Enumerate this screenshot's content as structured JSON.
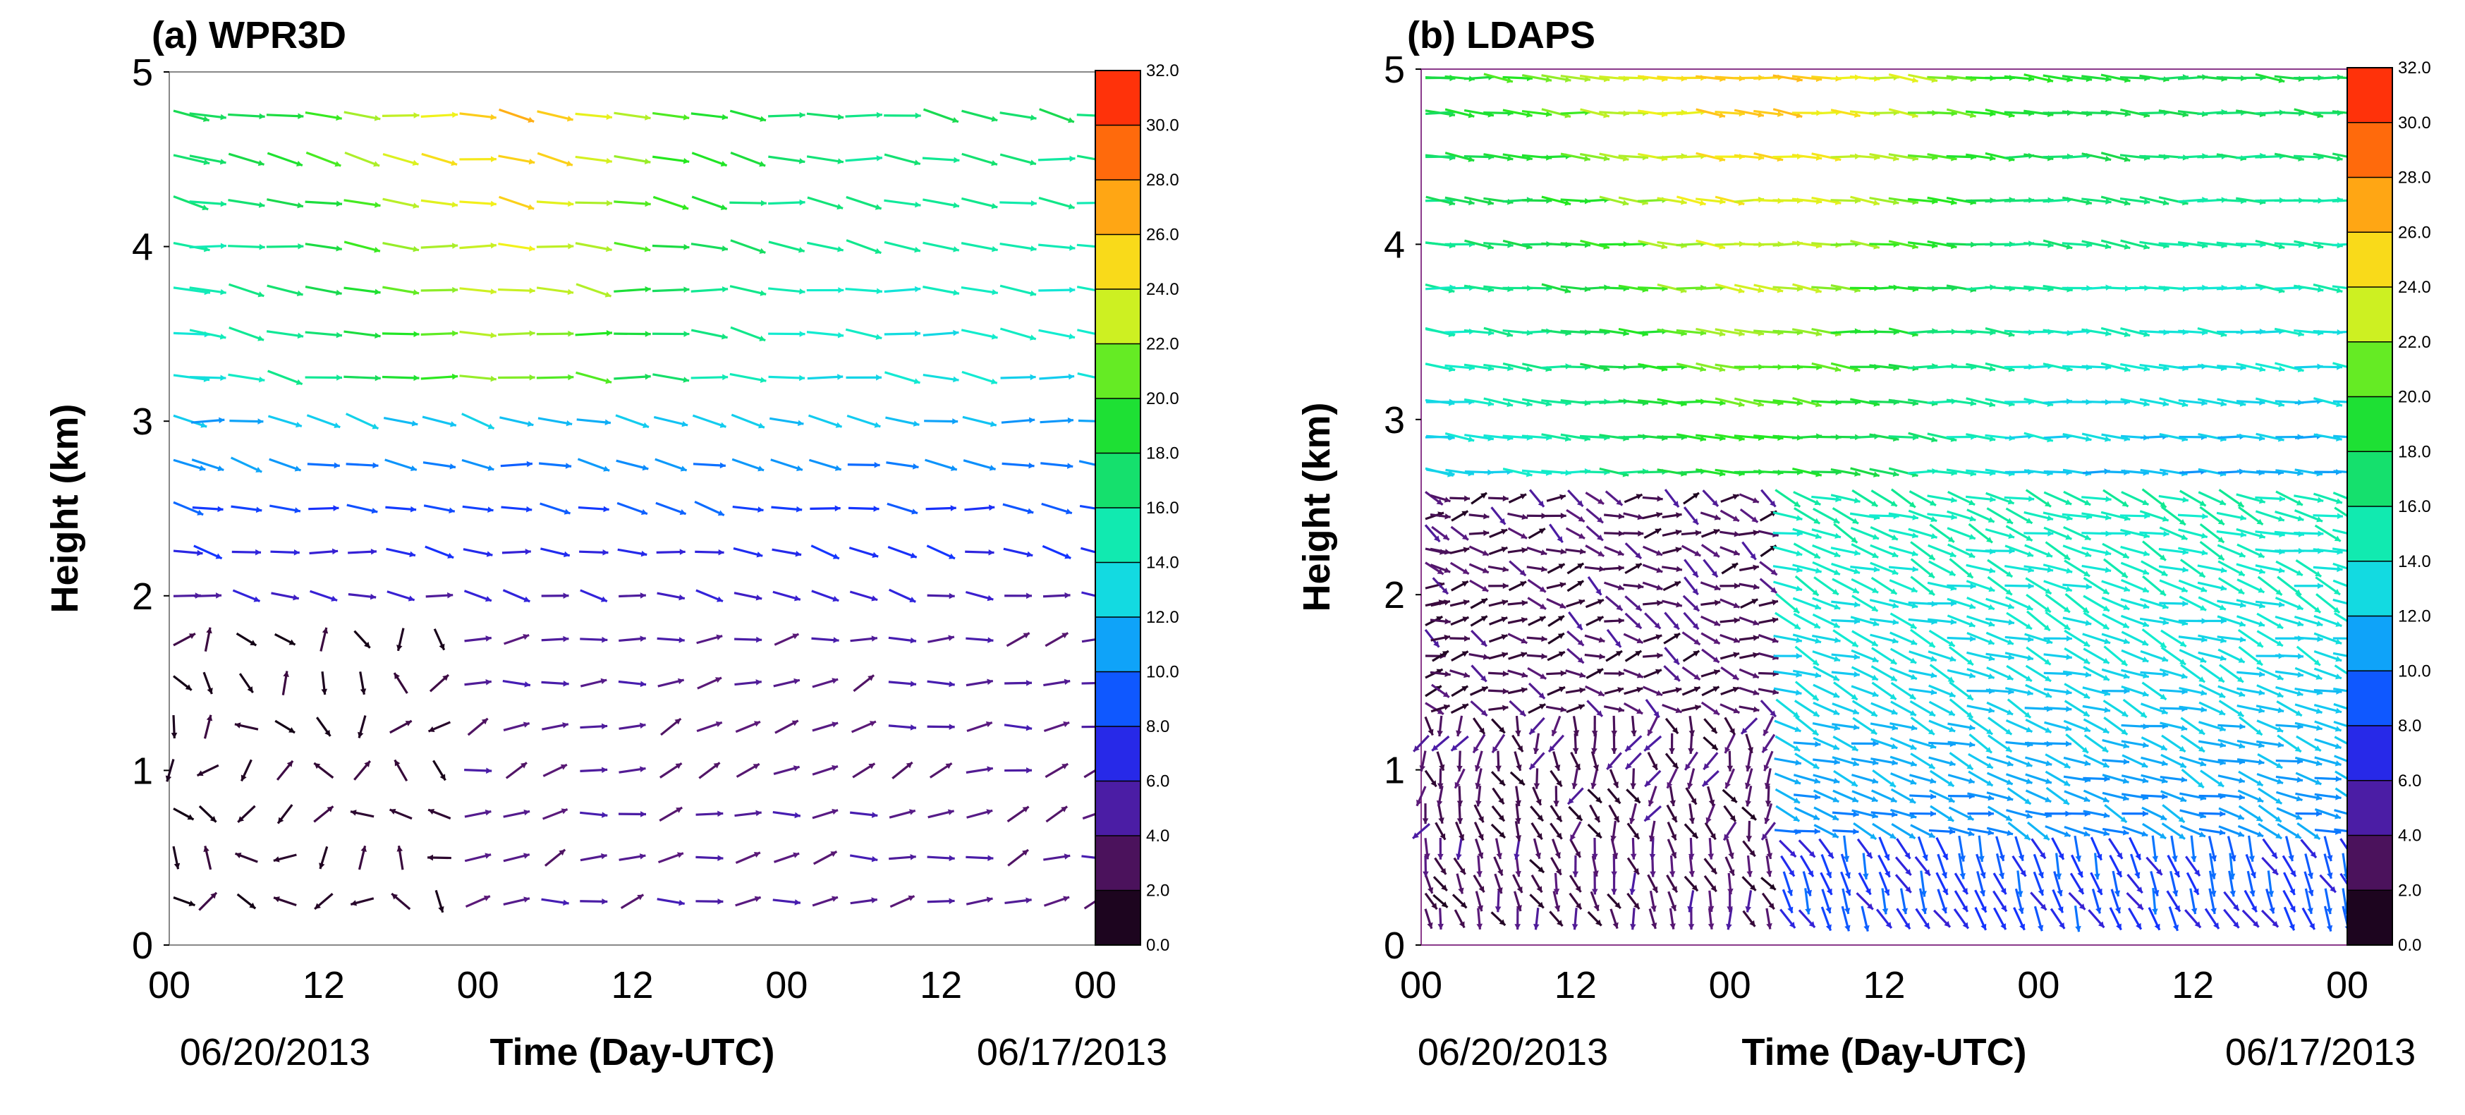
{
  "chart_data": [
    {
      "type": "wind-vector-time-height",
      "title": "(a) WPR3D",
      "xlabel": "Time (Day-UTC)",
      "ylabel": "Height (km)",
      "x_ticks": [
        "00",
        "12",
        "00",
        "12",
        "00",
        "12",
        "00"
      ],
      "x_ticks_hours": [
        0,
        12,
        24,
        36,
        48,
        60,
        72
      ],
      "x_range_hours": [
        0,
        72
      ],
      "y_ticks": [
        "0",
        "1",
        "2",
        "3",
        "4",
        "5"
      ],
      "y_range_km": [
        0,
        5
      ],
      "date_left": "06/20/2013",
      "date_right": "06/17/2013",
      "colorbar": {
        "ticks": [
          "0.0",
          "2.0",
          "4.0",
          "6.0",
          "8.0",
          "10.0",
          "12.0",
          "14.0",
          "16.0",
          "18.0",
          "20.0",
          "22.0",
          "24.0",
          "26.0",
          "28.0",
          "30.0",
          "32.0"
        ],
        "range": [
          0,
          32
        ],
        "colors": [
          "#000000",
          "#3a0a3e",
          "#5c1a7a",
          "#3a1fd0",
          "#1433ff",
          "#0a7dff",
          "#13c8f2",
          "#12ecd0",
          "#10e890",
          "#1ad84a",
          "#22e81e",
          "#a8ee2a",
          "#f2f21a",
          "#ffc21a",
          "#ff8a0e",
          "#ff4a0a",
          "#ff1a0a"
        ]
      },
      "field": {
        "heights_km": [
          0.25,
          0.5,
          0.75,
          1.0,
          1.25,
          1.5,
          1.75,
          2.0,
          2.25,
          2.5,
          2.75,
          3.0,
          3.25,
          3.5,
          3.75,
          4.0,
          4.25,
          4.5,
          4.75
        ],
        "time_step_hours": 3,
        "regime_a": {
          "from_hour": 0,
          "to_hour": 24,
          "below_km": 1.9,
          "speed_ms": 1.4,
          "direction": "variable northerly/easterly"
        },
        "regime_b": {
          "from_hour": 24,
          "to_hour": 72,
          "below_km": 1.9,
          "speed_ms": 4.5,
          "direction": "westerly"
        },
        "mid_layer": {
          "from_km": 1.9,
          "to_km": 3.2,
          "speed_ms": "5-12",
          "direction": "westerly"
        },
        "upper_layer": {
          "from_km": 3.2,
          "to_km": 4.8,
          "speed_ms": "12-25",
          "direction": "westerly",
          "max_near_hour": 26
        }
      }
    },
    {
      "type": "wind-vector-time-height",
      "title": "(b) LDAPS",
      "xlabel": "Time (Day-UTC)",
      "ylabel": "Height (km)",
      "x_ticks": [
        "00",
        "12",
        "00",
        "12",
        "00",
        "12",
        "00"
      ],
      "x_ticks_hours": [
        0,
        12,
        24,
        36,
        48,
        60,
        72
      ],
      "x_range_hours": [
        0,
        72
      ],
      "y_ticks": [
        "0",
        "1",
        "2",
        "3",
        "4",
        "5"
      ],
      "y_range_km": [
        0,
        5
      ],
      "date_left": "06/20/2013",
      "date_right": "06/17/2013",
      "colorbar": {
        "ticks": [
          "0.0",
          "2.0",
          "4.0",
          "6.0",
          "8.0",
          "10.0",
          "12.0",
          "14.0",
          "16.0",
          "18.0",
          "20.0",
          "22.0",
          "24.0",
          "26.0",
          "28.0",
          "30.0",
          "32.0"
        ],
        "range": [
          0,
          32
        ],
        "colors": [
          "#000000",
          "#3a0a3e",
          "#5c1a7a",
          "#3a1fd0",
          "#1433ff",
          "#0a7dff",
          "#13c8f2",
          "#12ecd0",
          "#10e890",
          "#1ad84a",
          "#22e81e",
          "#a8ee2a",
          "#f2f21a",
          "#ffc21a",
          "#ff8a0e",
          "#ff4a0a",
          "#ff1a0a"
        ]
      },
      "field": {
        "heights_km": [
          0.15,
          0.25,
          0.35,
          0.45,
          0.55,
          0.65,
          0.75,
          0.85,
          0.95,
          1.05,
          1.15,
          1.25,
          1.35,
          1.45,
          1.55,
          1.65,
          1.75,
          1.85,
          1.95,
          2.05,
          2.15,
          2.25,
          2.35,
          2.45,
          2.55,
          2.7,
          2.9,
          3.1,
          3.3,
          3.5,
          3.75,
          4.0,
          4.25,
          4.5,
          4.75,
          4.95
        ],
        "time_step_hours": 1.5,
        "regime_a": {
          "from_hour": 0,
          "to_hour": 28,
          "below_km": 2.6,
          "speed_ms": "1-5",
          "direction": "northerly / northeasterly"
        },
        "regime_b": {
          "from_hour": 28,
          "to_hour": 72,
          "below_km": 2.6,
          "speed_ms": "8-14",
          "direction": "westerly"
        },
        "upper_layer": {
          "from_km": 2.6,
          "to_km": 5.0,
          "speed_ms": "10-25",
          "direction": "westerly",
          "max_near_hour": 26
        }
      }
    }
  ]
}
